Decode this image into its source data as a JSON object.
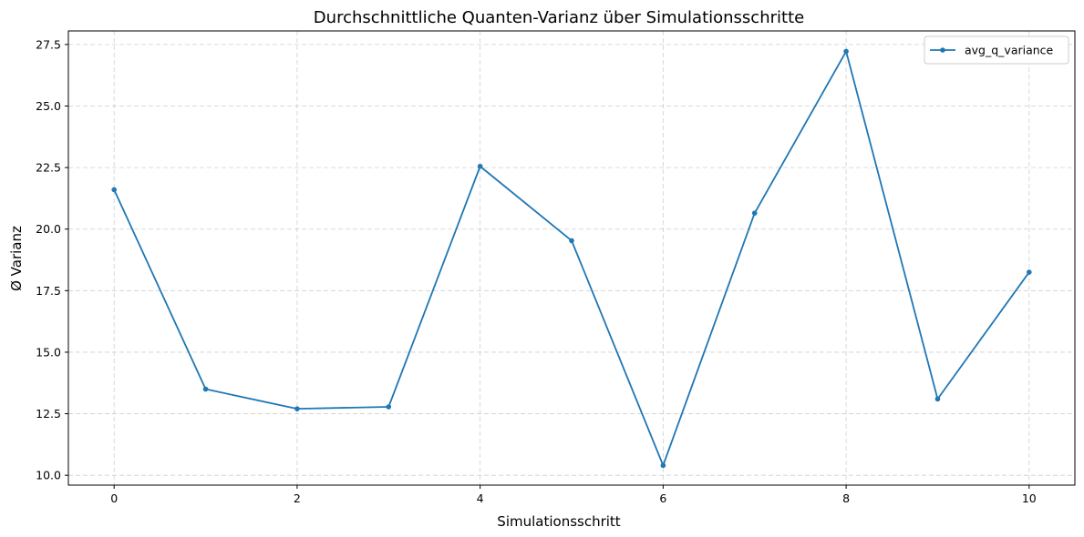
{
  "chart_data": {
    "type": "line",
    "title": "Durchschnittliche Quanten-Varianz über Simulationsschritte",
    "xlabel": "Simulationsschritt",
    "ylabel": "Ø Varianz",
    "x": [
      0,
      1,
      2,
      3,
      4,
      5,
      6,
      7,
      8,
      9,
      10
    ],
    "series": [
      {
        "name": "avg_q_variance",
        "color": "#1f77b4",
        "marker": "circle",
        "values": [
          21.6,
          13.5,
          12.7,
          12.78,
          22.55,
          19.53,
          10.4,
          20.65,
          27.22,
          13.1,
          18.25
        ]
      }
    ],
    "xlim": [
      -0.5,
      10.5
    ],
    "ylim": [
      9.6,
      28.05
    ],
    "xticks": [
      0,
      2,
      4,
      6,
      8,
      10
    ],
    "xtick_labels": [
      "0",
      "2",
      "4",
      "6",
      "8",
      "10"
    ],
    "yticks": [
      10.0,
      12.5,
      15.0,
      17.5,
      20.0,
      22.5,
      25.0,
      27.5
    ],
    "ytick_labels": [
      "10.0",
      "12.5",
      "15.0",
      "17.5",
      "20.0",
      "22.5",
      "25.0",
      "27.5"
    ],
    "grid": true,
    "legend_position": "top-right"
  }
}
